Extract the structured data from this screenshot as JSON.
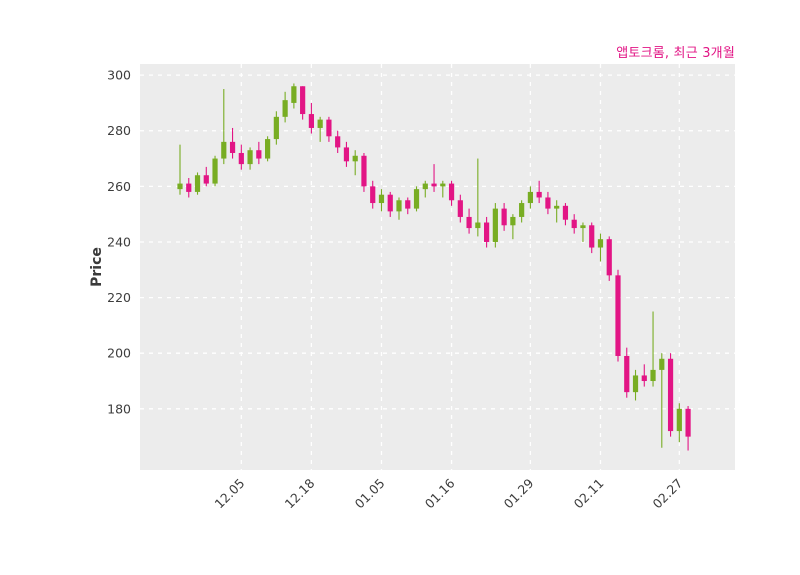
{
  "chart_data": {
    "type": "candlestick",
    "title": "앱토크롬, 최근 3개월",
    "ylabel": "Price",
    "ylim": [
      158,
      304
    ],
    "y_ticks": [
      300,
      280,
      260,
      240,
      220,
      200,
      180
    ],
    "x_ticks": [
      {
        "label": "12.05",
        "index": 7
      },
      {
        "label": "12.18",
        "index": 15
      },
      {
        "label": "01.05",
        "index": 23
      },
      {
        "label": "01.16",
        "index": 31
      },
      {
        "label": "01.29",
        "index": 40
      },
      {
        "label": "02.11",
        "index": 48
      },
      {
        "label": "02.27",
        "index": 57
      }
    ],
    "grid": "white-dashed",
    "legend": "none",
    "colors": {
      "up": "#78ad23",
      "down": "#e21585",
      "plot_bg": "#ececec",
      "grid": "#ffffff",
      "title": "#e21585",
      "tick": "#3d3d3d"
    },
    "candles": [
      [
        259,
        275,
        257,
        261
      ],
      [
        261,
        263,
        256,
        258
      ],
      [
        258,
        265,
        257,
        264
      ],
      [
        264,
        267,
        260,
        261
      ],
      [
        261,
        271,
        260,
        270
      ],
      [
        270,
        295,
        268,
        276
      ],
      [
        276,
        281,
        270,
        272
      ],
      [
        272,
        275,
        266,
        268
      ],
      [
        268,
        274,
        266,
        273
      ],
      [
        273,
        276,
        268,
        270
      ],
      [
        270,
        278,
        269,
        277
      ],
      [
        277,
        287,
        275,
        285
      ],
      [
        285,
        294,
        283,
        291
      ],
      [
        290,
        297,
        288,
        296
      ],
      [
        296,
        296,
        284,
        286
      ],
      [
        286,
        290,
        279,
        281
      ],
      [
        281,
        285,
        276,
        284
      ],
      [
        284,
        285,
        276,
        278
      ],
      [
        278,
        280,
        272,
        274
      ],
      [
        274,
        276,
        267,
        269
      ],
      [
        269,
        273,
        264,
        271
      ],
      [
        271,
        272,
        258,
        260
      ],
      [
        260,
        262,
        252,
        254
      ],
      [
        254,
        259,
        251,
        257
      ],
      [
        257,
        258,
        249,
        251
      ],
      [
        251,
        256,
        248,
        255
      ],
      [
        255,
        256,
        250,
        252
      ],
      [
        252,
        260,
        251,
        259
      ],
      [
        259,
        262,
        256,
        261
      ],
      [
        261,
        268,
        258,
        260
      ],
      [
        260,
        262,
        256,
        261
      ],
      [
        261,
        262,
        253,
        255
      ],
      [
        255,
        257,
        247,
        249
      ],
      [
        249,
        252,
        243,
        245
      ],
      [
        245,
        270,
        242,
        247
      ],
      [
        247,
        249,
        238,
        240
      ],
      [
        240,
        254,
        238,
        252
      ],
      [
        252,
        254,
        244,
        246
      ],
      [
        246,
        250,
        241,
        249
      ],
      [
        249,
        255,
        247,
        254
      ],
      [
        254,
        260,
        252,
        258
      ],
      [
        258,
        262,
        254,
        256
      ],
      [
        256,
        258,
        250,
        252
      ],
      [
        252,
        255,
        247,
        253
      ],
      [
        253,
        254,
        246,
        248
      ],
      [
        248,
        250,
        243,
        245
      ],
      [
        245,
        247,
        240,
        246
      ],
      [
        246,
        247,
        236,
        238
      ],
      [
        238,
        243,
        233,
        241
      ],
      [
        241,
        242,
        226,
        228
      ],
      [
        228,
        230,
        197,
        199
      ],
      [
        199,
        202,
        184,
        186
      ],
      [
        186,
        194,
        183,
        192
      ],
      [
        192,
        196,
        188,
        190
      ],
      [
        190,
        215,
        188,
        194
      ],
      [
        194,
        200,
        166,
        198
      ],
      [
        198,
        200,
        170,
        172
      ],
      [
        172,
        182,
        168,
        180
      ],
      [
        180,
        181,
        165,
        170
      ]
    ]
  }
}
